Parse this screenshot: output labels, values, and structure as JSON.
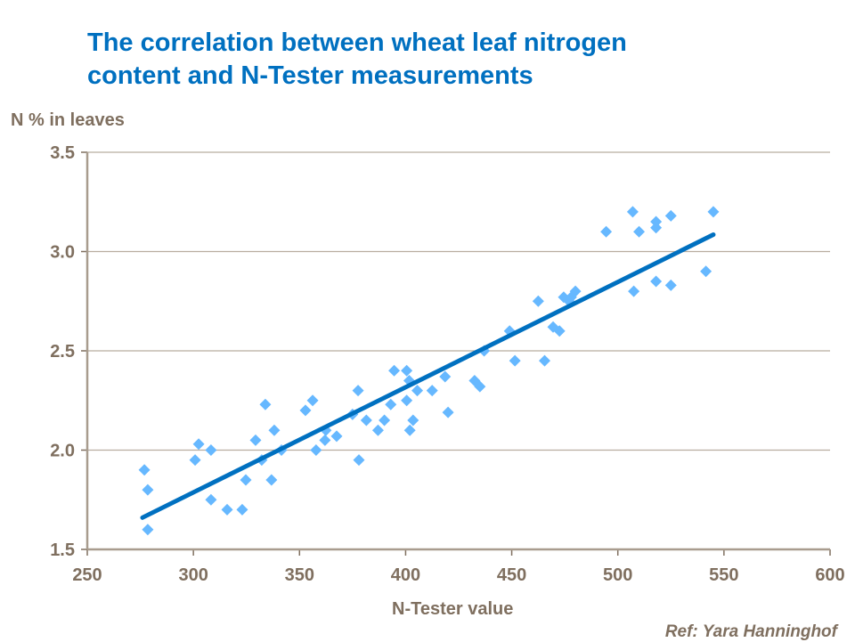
{
  "chart_data": {
    "type": "scatter",
    "title": "The correlation between wheat leaf nitrogen content and N-Tester measurements",
    "title_lines": [
      "The correlation between wheat leaf nitrogen",
      "content and N-Tester measurements"
    ],
    "xlabel": "N-Tester value",
    "ylabel": "N % in leaves",
    "reference": "Ref: Yara Hanninghof",
    "xlim": [
      250,
      600
    ],
    "ylim": [
      1.5,
      3.5
    ],
    "xticks": [
      "250",
      "300",
      "350",
      "400",
      "450",
      "500",
      "550",
      "600"
    ],
    "yticks": [
      "1.5",
      "2.0",
      "2.5",
      "3.0",
      "3.5"
    ],
    "grid": "horizontal",
    "marker_color": "#66b8ff",
    "trend_color": "#0070c0",
    "trendline": [
      [
        276,
        1.66
      ],
      [
        545,
        3.085
      ]
    ],
    "points": [
      [
        276.9,
        1.9
      ],
      [
        278.5,
        1.8
      ],
      [
        278.5,
        1.6
      ],
      [
        300.8,
        1.95
      ],
      [
        302.5,
        2.03
      ],
      [
        308.3,
        2.0
      ],
      [
        308.3,
        1.75
      ],
      [
        315.9,
        1.7
      ],
      [
        323,
        1.7
      ],
      [
        324.7,
        1.85
      ],
      [
        329.3,
        2.05
      ],
      [
        332.2,
        1.95
      ],
      [
        333.9,
        2.23
      ],
      [
        336.8,
        1.85
      ],
      [
        338.1,
        2.1
      ],
      [
        341.5,
        2.0
      ],
      [
        352.8,
        2.2
      ],
      [
        356.2,
        2.25
      ],
      [
        357.8,
        2.0
      ],
      [
        362,
        2.05
      ],
      [
        362.4,
        2.1
      ],
      [
        367.5,
        2.07
      ],
      [
        375,
        2.18
      ],
      [
        377.6,
        2.3
      ],
      [
        378,
        1.95
      ],
      [
        381.5,
        2.15
      ],
      [
        387,
        2.1
      ],
      [
        390,
        2.15
      ],
      [
        393,
        2.23
      ],
      [
        394.6,
        2.4
      ],
      [
        400.5,
        2.4
      ],
      [
        400.5,
        2.25
      ],
      [
        401.7,
        2.35
      ],
      [
        402,
        2.1
      ],
      [
        403.5,
        2.15
      ],
      [
        405.5,
        2.3
      ],
      [
        412.5,
        2.3
      ],
      [
        418.6,
        2.37
      ],
      [
        420,
        2.19
      ],
      [
        432.5,
        2.35
      ],
      [
        435,
        2.32
      ],
      [
        437,
        2.5
      ],
      [
        449,
        2.6
      ],
      [
        451.5,
        2.45
      ],
      [
        462.5,
        2.75
      ],
      [
        465.5,
        2.45
      ],
      [
        469.5,
        2.62
      ],
      [
        472.5,
        2.6
      ],
      [
        474.5,
        2.77
      ],
      [
        477,
        2.75
      ],
      [
        478,
        2.77
      ],
      [
        480,
        2.8
      ],
      [
        494.5,
        3.1
      ],
      [
        507,
        3.2
      ],
      [
        507.5,
        2.8
      ],
      [
        510,
        3.1
      ],
      [
        518,
        3.15
      ],
      [
        518,
        3.12
      ],
      [
        518,
        2.85
      ],
      [
        525,
        3.18
      ],
      [
        525,
        2.83
      ],
      [
        541.5,
        2.9
      ],
      [
        545,
        3.2
      ]
    ]
  }
}
